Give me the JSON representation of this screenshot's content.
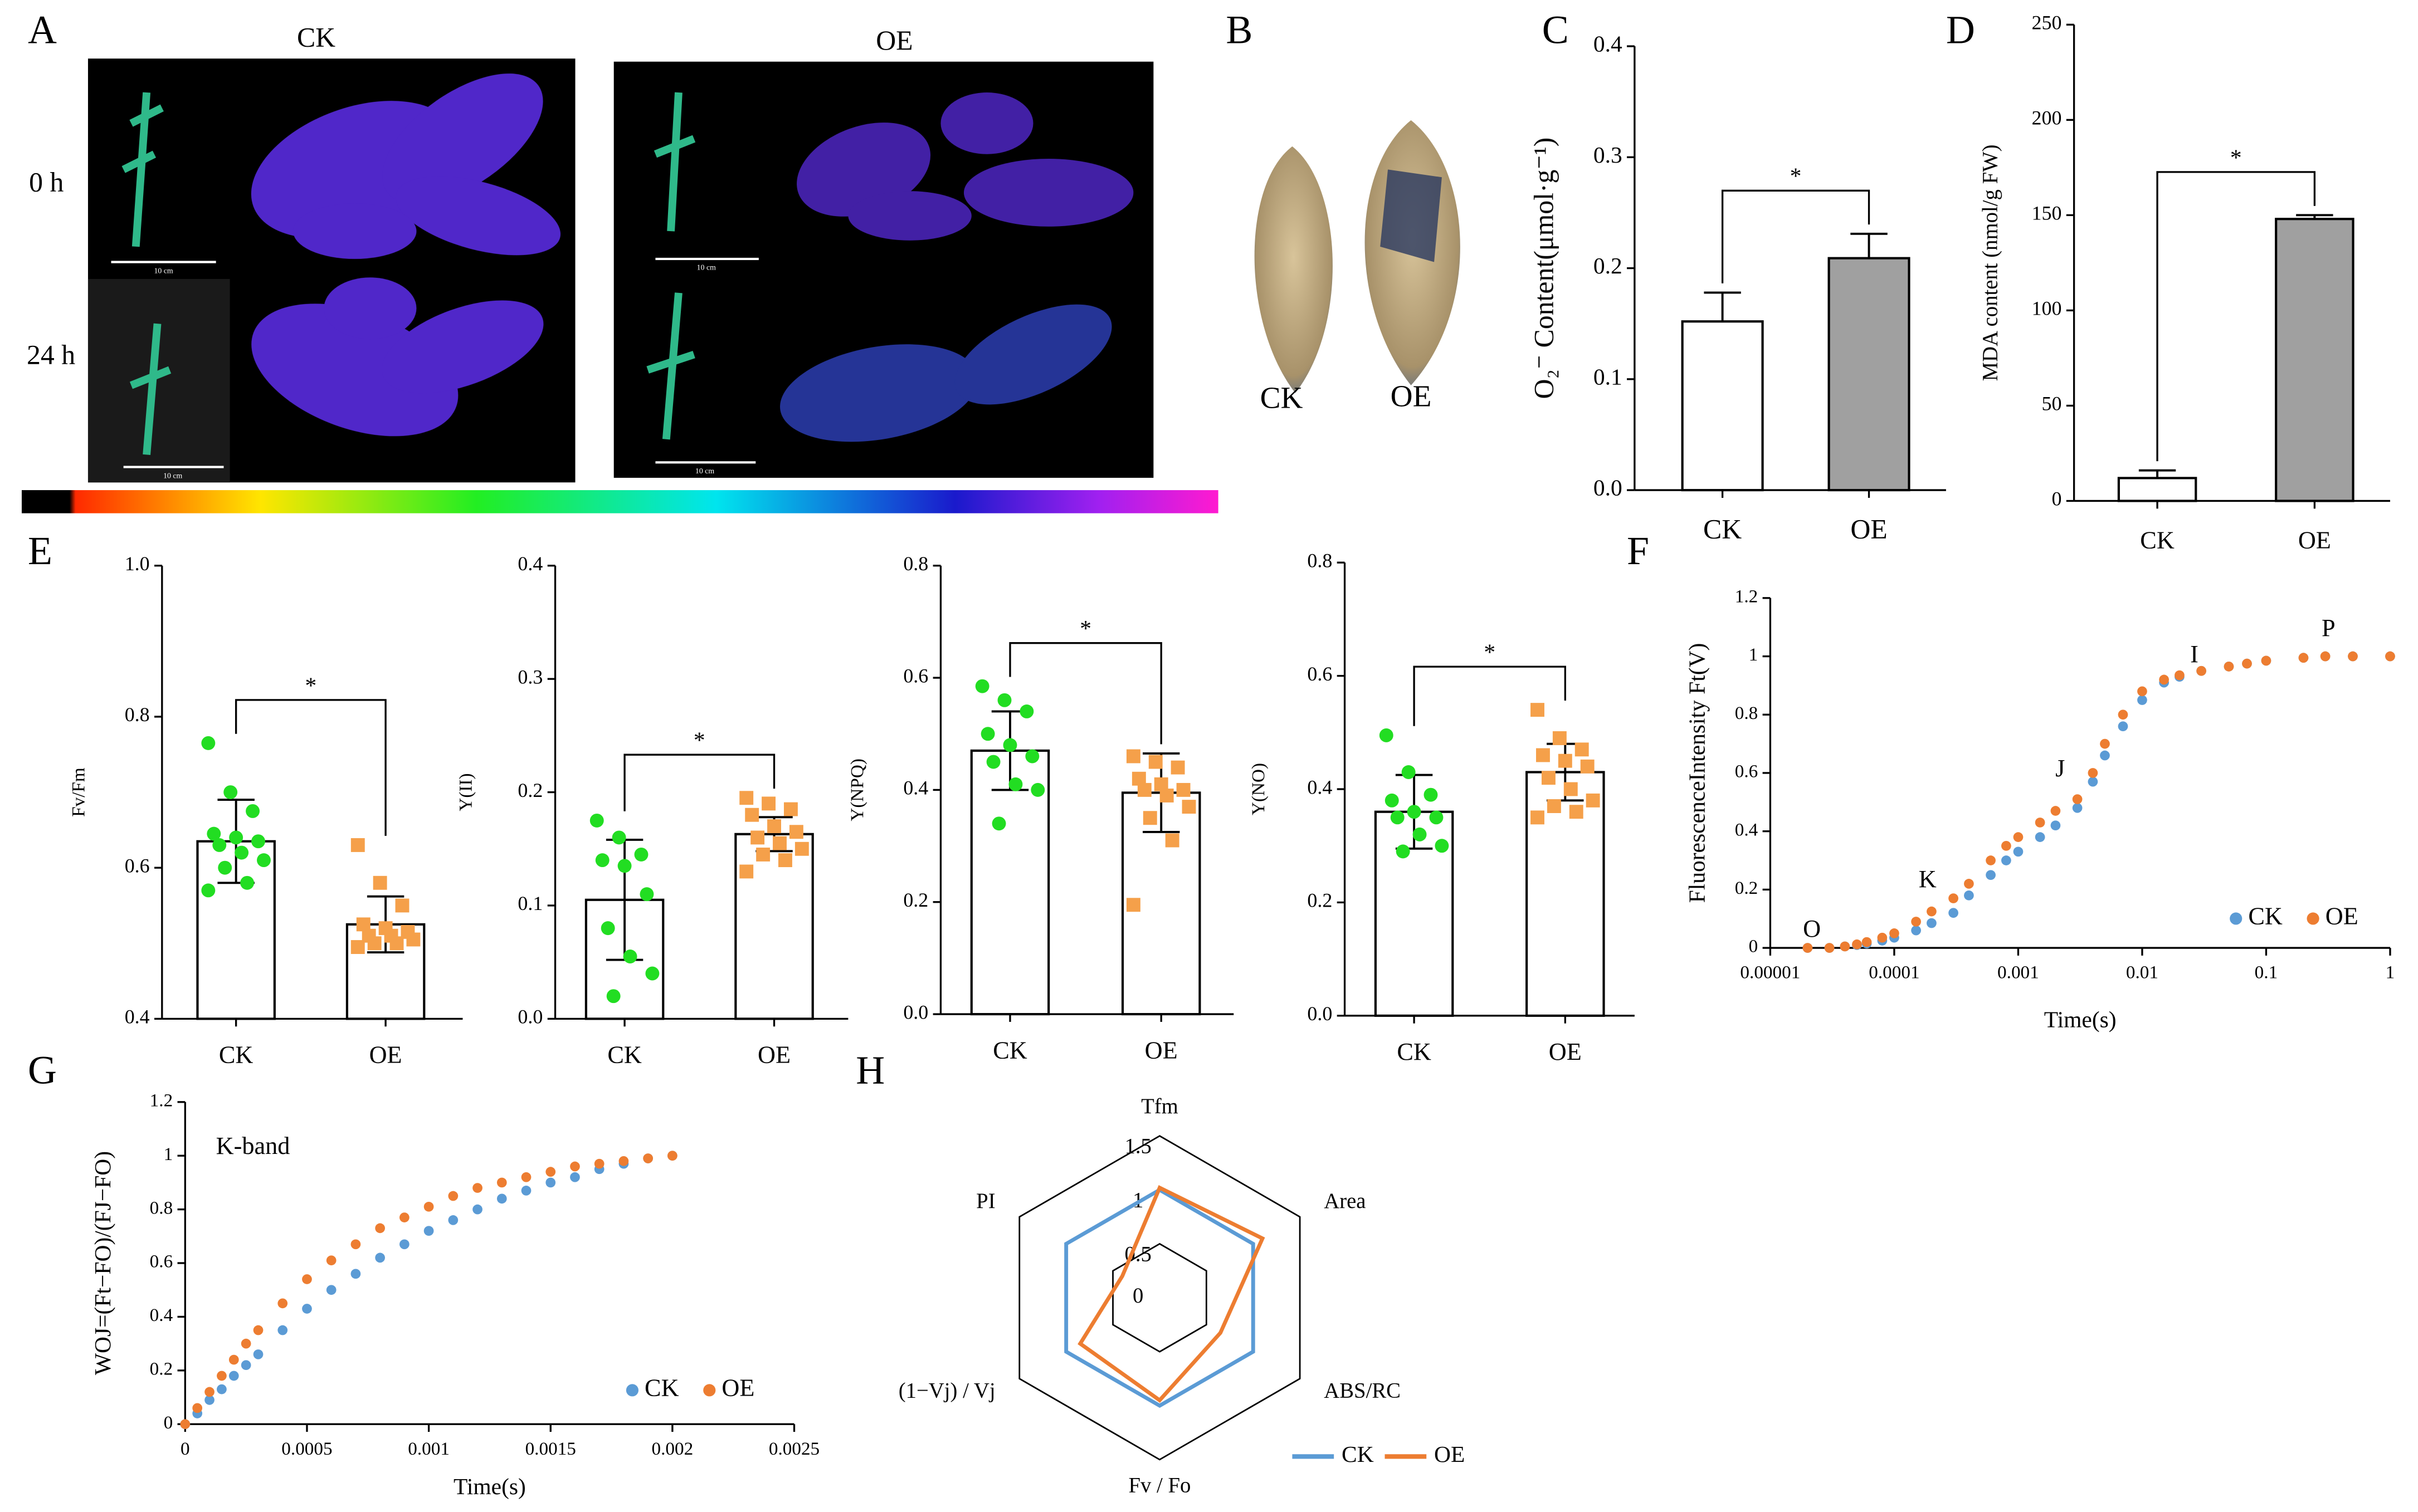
{
  "photos": {
    "panel": "A",
    "columns": [
      "CK",
      "OE"
    ],
    "rows": [
      "0 h",
      "24 h"
    ],
    "scale_labels": [
      "10 cm",
      "10 cm",
      "10 cm",
      "10 cm"
    ]
  },
  "leaves": {
    "panel": "B",
    "labels": [
      "CK",
      "OE"
    ]
  },
  "chart_data": [
    {
      "type": "bar",
      "panel": "C",
      "ylabel": "O₂⁻ Content(μmol·g⁻¹)",
      "categories": [
        "CK",
        "OE"
      ],
      "values": [
        0.152,
        0.209
      ],
      "errors": [
        0.026,
        0.022
      ],
      "colors": [
        "#ffffff",
        "#a0a0a0"
      ],
      "ylim": [
        0,
        0.4
      ],
      "yticks": [
        {
          "value": 0,
          "label": "0.0"
        },
        0.1,
        0.2,
        0.3,
        0.4
      ],
      "annotation": "*"
    },
    {
      "type": "bar",
      "panel": "D",
      "ylabel": "MDA content (nmol/g FW)",
      "categories": [
        "CK",
        "OE"
      ],
      "values": [
        12,
        148
      ],
      "errors": [
        4,
        2
      ],
      "colors": [
        "#ffffff",
        "#a0a0a0"
      ],
      "ylim": [
        0,
        250
      ],
      "yticks": [
        0,
        50,
        100,
        150,
        200,
        250
      ],
      "annotation": "*"
    },
    {
      "type": "bar",
      "panel": "E",
      "ylabel": "Fv/Fm",
      "categories": [
        "CK",
        "OE"
      ],
      "values": [
        0.635,
        0.525
      ],
      "errors": [
        0.055,
        0.037
      ],
      "colors": [
        "#ffffff",
        "#ffffff"
      ],
      "point_colors": [
        "#22dd22",
        "#f5a04a"
      ],
      "points": [
        [
          0.765,
          0.7,
          0.675,
          0.645,
          0.64,
          0.635,
          0.63,
          0.62,
          0.61,
          0.6,
          0.58,
          0.57
        ],
        [
          0.63,
          0.58,
          0.55,
          0.525,
          0.52,
          0.515,
          0.51,
          0.51,
          0.505,
          0.5,
          0.5,
          0.495
        ]
      ],
      "ylim": [
        0.4,
        1.0
      ],
      "yticks": [
        0.4,
        0.6,
        0.8,
        {
          "value": 1,
          "label": "1.0"
        }
      ],
      "annotation": "*"
    },
    {
      "type": "bar",
      "ylabel": "Y(II)",
      "categories": [
        "CK",
        "OE"
      ],
      "values": [
        0.105,
        0.163
      ],
      "errors": [
        0.053,
        0.015
      ],
      "colors": [
        "#ffffff",
        "#ffffff"
      ],
      "point_colors": [
        "#22dd22",
        "#f5a04a"
      ],
      "points": [
        [
          0.175,
          0.16,
          0.145,
          0.14,
          0.135,
          0.11,
          0.08,
          0.055,
          0.04,
          0.02
        ],
        [
          0.195,
          0.19,
          0.185,
          0.18,
          0.17,
          0.165,
          0.16,
          0.155,
          0.15,
          0.145,
          0.14,
          0.13
        ]
      ],
      "ylim": [
        0,
        0.4
      ],
      "yticks": [
        {
          "value": 0,
          "label": "0.0"
        },
        0.1,
        0.2,
        0.3,
        0.4
      ],
      "annotation": "*"
    },
    {
      "type": "bar",
      "ylabel": "Y(NPQ)",
      "categories": [
        "CK",
        "OE"
      ],
      "values": [
        0.47,
        0.395
      ],
      "errors": [
        0.07,
        0.07
      ],
      "colors": [
        "#ffffff",
        "#ffffff"
      ],
      "point_colors": [
        "#22dd22",
        "#f5a04a"
      ],
      "points": [
        [
          0.585,
          0.56,
          0.54,
          0.5,
          0.48,
          0.46,
          0.45,
          0.41,
          0.4,
          0.34
        ],
        [
          0.46,
          0.45,
          0.44,
          0.42,
          0.41,
          0.4,
          0.4,
          0.39,
          0.37,
          0.35,
          0.31,
          0.195
        ]
      ],
      "ylim": [
        0,
        0.8
      ],
      "yticks": [
        {
          "value": 0,
          "label": "0.0"
        },
        0.2,
        0.4,
        0.6,
        0.8
      ],
      "annotation": "*"
    },
    {
      "type": "bar",
      "ylabel": "Y(NO)",
      "categories": [
        "CK",
        "OE"
      ],
      "values": [
        0.36,
        0.43
      ],
      "errors": [
        0.065,
        0.05
      ],
      "colors": [
        "#ffffff",
        "#ffffff"
      ],
      "point_colors": [
        "#22dd22",
        "#f5a04a"
      ],
      "points": [
        [
          0.495,
          0.43,
          0.39,
          0.38,
          0.36,
          0.35,
          0.35,
          0.32,
          0.3,
          0.29
        ],
        [
          0.54,
          0.49,
          0.47,
          0.46,
          0.45,
          0.44,
          0.42,
          0.4,
          0.38,
          0.37,
          0.36,
          0.35
        ]
      ],
      "ylim": [
        0,
        0.8
      ],
      "yticks": [
        {
          "value": 0,
          "label": "0.0"
        },
        0.2,
        0.4,
        0.6,
        0.8
      ],
      "annotation": "*"
    },
    {
      "type": "scatter",
      "panel": "F",
      "xlabel": "Time(s)",
      "ylabel": "FluorescenceIntensity Ft(V)",
      "xlog": true,
      "legend": "lower right",
      "x": [
        2e-05,
        3e-05,
        4e-05,
        5e-05,
        6e-05,
        8e-05,
        0.0001,
        0.00015,
        0.0002,
        0.0003,
        0.0004,
        0.0006,
        0.0008,
        0.001,
        0.0015,
        0.002,
        0.003,
        0.004,
        0.005,
        0.007,
        0.01,
        0.015,
        0.02,
        0.03,
        0.05,
        0.07,
        0.1,
        0.2,
        0.3,
        0.5,
        1
      ],
      "series": [
        {
          "name": "CK",
          "color": "#5b9bd5",
          "values": [
            0,
            0,
            0.005,
            0.01,
            0.015,
            0.025,
            0.035,
            0.06,
            0.085,
            0.12,
            0.18,
            0.25,
            0.3,
            0.33,
            0.38,
            0.42,
            0.48,
            0.57,
            0.66,
            0.76,
            0.85,
            0.91,
            0.93,
            0.95,
            0.965,
            0.975,
            0.985,
            0.995,
            1,
            1,
            1
          ]
        },
        {
          "name": "OE",
          "color": "#ed7d31",
          "values": [
            0,
            0,
            0.005,
            0.012,
            0.02,
            0.035,
            0.05,
            0.09,
            0.125,
            0.17,
            0.22,
            0.3,
            0.35,
            0.38,
            0.43,
            0.47,
            0.51,
            0.6,
            0.7,
            0.8,
            0.88,
            0.92,
            0.935,
            0.95,
            0.965,
            0.975,
            0.985,
            0.995,
            1,
            1,
            1
          ]
        }
      ],
      "annotations": [
        "O",
        "K",
        "J",
        "I",
        "P"
      ],
      "xlim": [
        1e-05,
        1
      ],
      "xticks": [
        1e-05,
        0.0001,
        0.001,
        0.01,
        0.1,
        1
      ],
      "ylim": [
        0,
        1.2
      ],
      "yticks": [
        0,
        0.2,
        0.4,
        0.6,
        0.8,
        1,
        1.2
      ]
    },
    {
      "type": "scatter",
      "panel": "G",
      "xlabel": "Time(s)",
      "ylabel": "WOJ=(Ft−FO)/(FJ−FO)",
      "legend": "lower right",
      "annotations": [
        "K-band"
      ],
      "x": [
        0,
        5e-05,
        0.0001,
        0.00015,
        0.0002,
        0.00025,
        0.0003,
        0.0004,
        0.0005,
        0.0006,
        0.0007,
        0.0008,
        0.0009,
        0.001,
        0.0011,
        0.0012,
        0.0013,
        0.0014,
        0.0015,
        0.0016,
        0.0017,
        0.0018,
        0.0019,
        0.002
      ],
      "series": [
        {
          "name": "CK",
          "color": "#5b9bd5",
          "values": [
            0,
            0.04,
            0.09,
            0.13,
            0.18,
            0.22,
            0.26,
            0.35,
            0.43,
            0.5,
            0.56,
            0.62,
            0.67,
            0.72,
            0.76,
            0.8,
            0.84,
            0.87,
            0.9,
            0.92,
            0.95,
            0.97,
            0.99,
            1
          ]
        },
        {
          "name": "OE",
          "color": "#ed7d31",
          "values": [
            0,
            0.06,
            0.12,
            0.18,
            0.24,
            0.3,
            0.35,
            0.45,
            0.54,
            0.61,
            0.67,
            0.73,
            0.77,
            0.81,
            0.85,
            0.88,
            0.9,
            0.92,
            0.94,
            0.96,
            0.97,
            0.98,
            0.99,
            1
          ]
        }
      ],
      "xlim": [
        0,
        0.0025
      ],
      "xticks": [
        0,
        0.0005,
        0.001,
        0.0015,
        0.002,
        0.0025
      ],
      "ylim": [
        0,
        1.2
      ],
      "yticks": [
        0,
        0.2,
        0.4,
        0.6,
        0.8,
        1,
        1.2
      ]
    },
    {
      "type": "radar",
      "panel": "H",
      "categories": [
        "Tfm",
        "Area",
        "ABS/RC",
        "Fv / Fo",
        "(1−Vj) / Vj",
        "PI"
      ],
      "series": [
        {
          "name": "CK",
          "color": "#5b9bd5",
          "values": [
            1,
            1,
            1,
            1,
            1,
            1
          ]
        },
        {
          "name": "OE",
          "color": "#ed7d31",
          "values": [
            1.02,
            1.1,
            0.65,
            0.95,
            0.85,
            0.4
          ]
        }
      ],
      "rlim": [
        0,
        1.5
      ],
      "rticks": [
        0,
        0.5,
        1,
        1.5
      ],
      "legend": "bottom"
    }
  ]
}
